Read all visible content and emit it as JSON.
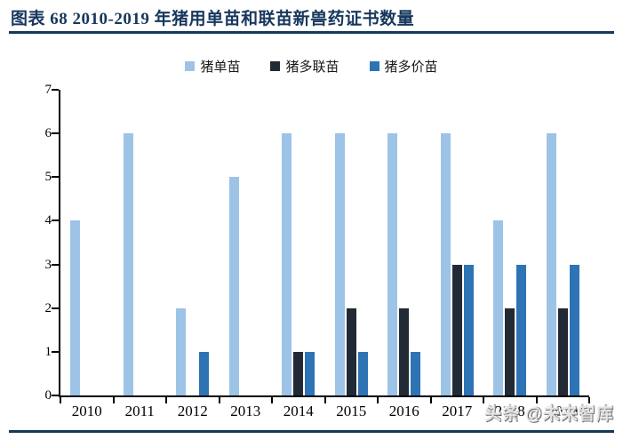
{
  "header": {
    "title": "图表 68  2010-2019 年猪用单苗和联苗新兽药证书数量"
  },
  "watermark": "头条 @未来智库",
  "colors": {
    "title_navy": "#17375D",
    "axis": "#000000",
    "series_single": "#9DC3E6",
    "series_multi_combo": "#222A35",
    "series_multi_valent": "#2E74B5"
  },
  "chart_data": {
    "type": "bar",
    "title": "2010-2019 年猪用单苗和联苗新兽药证书数量",
    "categories": [
      "2010",
      "2011",
      "2012",
      "2013",
      "2014",
      "2015",
      "2016",
      "2017",
      "2018",
      "2019"
    ],
    "series": [
      {
        "name": "猪单苗",
        "color": "#9DC3E6",
        "values": [
          4,
          6,
          2,
          5,
          6,
          6,
          6,
          6,
          4,
          6
        ]
      },
      {
        "name": "猪多联苗",
        "color": "#222A35",
        "values": [
          0,
          0,
          0,
          0,
          1,
          2,
          2,
          3,
          2,
          2
        ]
      },
      {
        "name": "猪多价苗",
        "color": "#2E74B5",
        "values": [
          0,
          0,
          1,
          0,
          1,
          1,
          1,
          3,
          3,
          3
        ]
      }
    ],
    "xlabel": "",
    "ylabel": "",
    "ylim": [
      0,
      7
    ],
    "yticks": [
      0,
      1,
      2,
      3,
      4,
      5,
      6,
      7
    ],
    "legend_position": "top-center",
    "grid": false
  }
}
